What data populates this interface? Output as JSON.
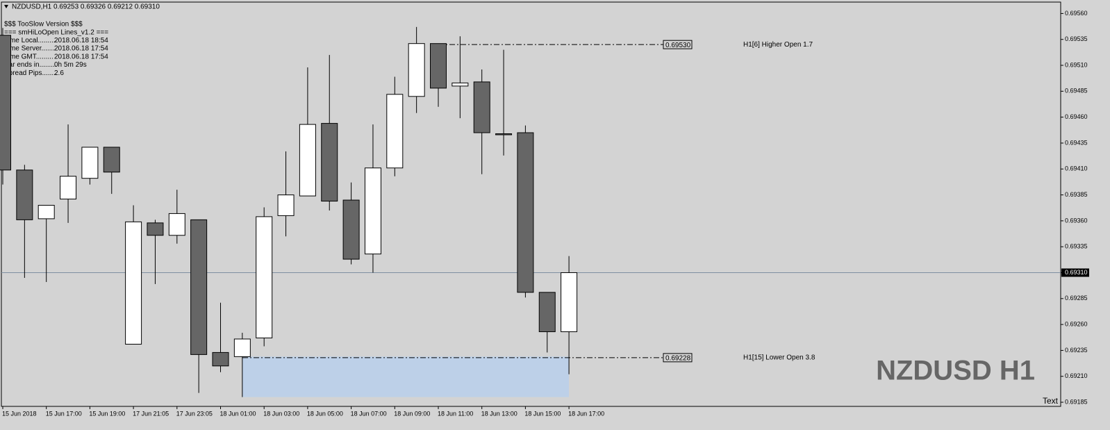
{
  "chart_data": {
    "type": "candlestick",
    "header": "NZDUSD,H1  0.69253 0.69326 0.69212 0.69310",
    "info_lines": [
      "$$$ TooSlow Version $$$",
      "=== smHiLoOpen Lines_v1.2 ==="
    ],
    "info_rows": [
      [
        "Time Local.........",
        "2018.06.18 18:54"
      ],
      [
        "Time Server.......",
        "2018.06.18 17:54"
      ],
      [
        "Time GMT.........",
        "2018.06.18 17:54"
      ],
      [
        "Bar ends in.........",
        "0h 5m 29s"
      ],
      [
        "Spread Pips........",
        "2.6"
      ]
    ],
    "categories": [
      "15 Jun 2018",
      null,
      "15 Jun 17:00",
      null,
      "15 Jun 19:00",
      null,
      "17 Jun 21:05",
      null,
      "17 Jun 23:05",
      null,
      "18 Jun 01:00",
      null,
      "18 Jun 03:00",
      null,
      "18 Jun 05:00",
      null,
      "18 Jun 07:00",
      null,
      "18 Jun 09:00",
      null,
      "18 Jun 11:00",
      null,
      "18 Jun 13:00",
      null,
      "18 Jun 15:00",
      null,
      "18 Jun 17:00"
    ],
    "open": [
      0.69539,
      0.69409,
      0.69362,
      0.69381,
      0.69401,
      0.69431,
      0.69241,
      0.69358,
      0.69346,
      0.69361,
      0.69233,
      0.69229,
      0.69247,
      0.69365,
      0.69384,
      0.69454,
      0.6938,
      0.69328,
      0.69411,
      0.6948,
      0.69531,
      0.6949,
      0.69494,
      0.69444,
      0.69445,
      0.69291,
      0.69253
    ],
    "high": [
      0.69546,
      0.69414,
      0.69375,
      0.69453,
      0.69431,
      0.69431,
      0.69375,
      0.69361,
      0.6939,
      0.69361,
      0.69281,
      0.69252,
      0.69373,
      0.69427,
      0.69508,
      0.6952,
      0.69397,
      0.69453,
      0.69499,
      0.69547,
      0.69531,
      0.69538,
      0.69506,
      0.69525,
      0.69452,
      0.69291,
      0.69326
    ],
    "low": [
      0.69395,
      0.69305,
      0.69301,
      0.69358,
      0.69395,
      0.69386,
      0.69241,
      0.69299,
      0.69338,
      0.69194,
      0.69214,
      0.6919,
      0.69239,
      0.69345,
      0.69384,
      0.6937,
      0.69318,
      0.6931,
      0.69403,
      0.69464,
      0.6947,
      0.69459,
      0.69405,
      0.69423,
      0.69286,
      0.69233,
      0.69212
    ],
    "close": [
      0.69409,
      0.69361,
      0.69375,
      0.69403,
      0.69431,
      0.69407,
      0.69359,
      0.69346,
      0.69367,
      0.69231,
      0.6922,
      0.69246,
      0.69364,
      0.69385,
      0.69453,
      0.69379,
      0.69323,
      0.69411,
      0.69482,
      0.69531,
      0.69488,
      0.69493,
      0.69445,
      0.69443,
      0.69291,
      0.69253,
      0.6931
    ],
    "up_color": "#ffffff",
    "down_color": "#666666",
    "ylim": [
      0.69181,
      0.69571
    ],
    "yticks": [
      {
        "value": 0.6956,
        "label": "0.69560"
      },
      0.69535,
      {
        "value": 0.6951,
        "label": "0.69510"
      },
      0.69485,
      {
        "value": 0.6946,
        "label": "0.69460"
      },
      0.69435,
      {
        "value": 0.6941,
        "label": "0.69410"
      },
      0.69385,
      {
        "value": 0.6936,
        "label": "0.69360"
      },
      0.69335,
      {
        "value": 0.6931,
        "label": "0.69310"
      },
      0.69285,
      {
        "value": 0.6926,
        "label": "0.69260"
      },
      0.69235,
      {
        "value": 0.6921,
        "label": "0.69210"
      },
      0.69185
    ],
    "current_price": {
      "value": 0.6931,
      "label": "0.69310"
    },
    "levels": [
      {
        "value": 0.6953,
        "label": "0.69530",
        "text": "H1[6] Higher Open 1.7"
      },
      {
        "value": 0.69228,
        "label": "0.69228",
        "text": "H1[15] Lower Open 3.8"
      }
    ],
    "zone": {
      "top": 0.69229,
      "bottom": 0.6919,
      "color": "#bdd0e8"
    },
    "watermark": "NZDUSD H1",
    "corner_text": "Text"
  }
}
